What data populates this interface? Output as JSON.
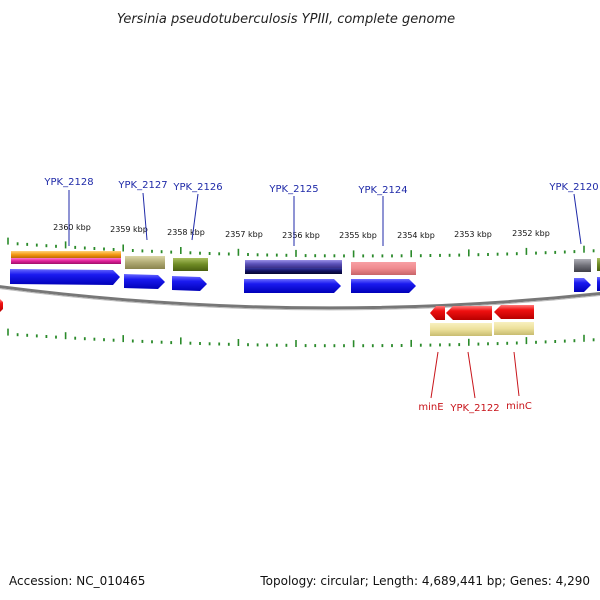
{
  "title": "Yersinia pseudotuberculosis YPIII, complete genome",
  "footer": {
    "accession": "Accession: NC_010465",
    "summary": "Topology: circular; Length: 4,689,441 bp; Genes: 4,290"
  },
  "scale_labels": [
    "2360 kbp",
    "2359 kbp",
    "2358 kbp",
    "2357 kbp",
    "2356 kbp",
    "2355 kbp",
    "2354 kbp",
    "2353 kbp",
    "2352 kbp"
  ],
  "top_gene_labels": [
    "YPK_2128",
    "YPK_2127",
    "YPK_2126",
    "YPK_2125",
    "YPK_2124",
    "YPK_2120"
  ],
  "bottom_gene_labels": [
    "minE",
    "YPK_2122",
    "minC"
  ],
  "colors": {
    "forward_cds": "#1010ee",
    "reverse_cds": "#ee0000",
    "backbone": "#888888",
    "ticks": "#2a8a2a",
    "label_top": "#1f2aa8",
    "label_bottom": "#c8151b",
    "orange": "#f59a14",
    "magenta": "#e0209a",
    "khaki": "#b0aa74",
    "olive": "#6e8a24",
    "purple": "#5a50b8",
    "navy": "#101060",
    "salmon": "#ef8a8e",
    "slate": "#707078",
    "pale_yellow": "#ece09a"
  }
}
